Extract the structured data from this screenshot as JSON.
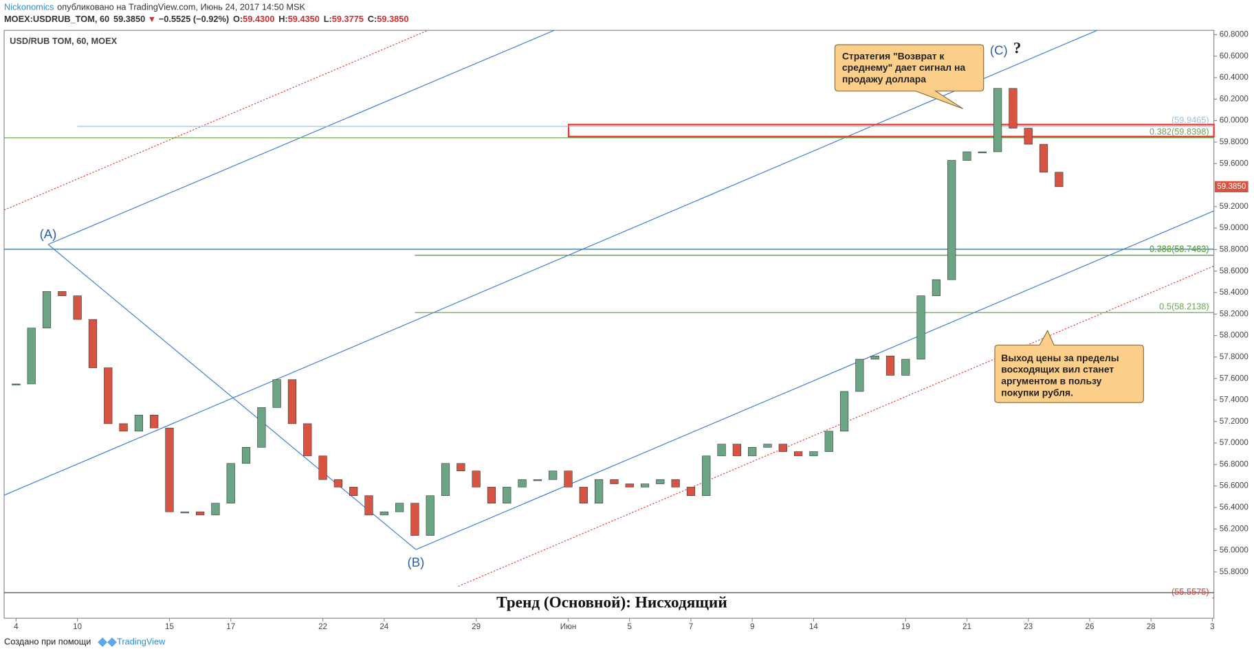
{
  "header": {
    "author": "Nickonomics",
    "published": "опубликовано на TradingView.com, Июнь 24, 2017 14:50 MSK",
    "symbol": "MOEX:USDRUB_TOM, 60",
    "last": "59.3850",
    "arrow": "▼",
    "change": "−0.5525 (−0.92%)",
    "ohlc": [
      [
        "O:",
        "59.4300"
      ],
      [
        "H:",
        "59.4350"
      ],
      [
        "L:",
        "59.3775"
      ],
      [
        "C:",
        "59.3850"
      ]
    ]
  },
  "chart_data": {
    "type": "candlestick",
    "title": "USD/RUB TOM, 60, MOEX",
    "up_color": "#6ba583",
    "down_color": "#d75442",
    "x": [
      0,
      0.5,
      1,
      1.5,
      2,
      2.5,
      3,
      3.5,
      4,
      4.5,
      5,
      5.5,
      6,
      6.5,
      7,
      7.5,
      8,
      8.5,
      9,
      9.5,
      10,
      10.5,
      11,
      11.5,
      12,
      12.5,
      13,
      13.5,
      14,
      14.5,
      15,
      15.5,
      16,
      16.5,
      17,
      17.5,
      18,
      18.5,
      19,
      19.5,
      20,
      20.5,
      21,
      21.5,
      22,
      22.5,
      23,
      23.5,
      24,
      24.5,
      25,
      25.5,
      26,
      26.5,
      27,
      27.5,
      28,
      28.5,
      29,
      29.5,
      30,
      30.5,
      31,
      31.5,
      32,
      32.5,
      33,
      33.5,
      34
    ],
    "values": [
      57.55,
      58.07,
      58.41,
      58.37,
      58.15,
      57.7,
      57.18,
      57.11,
      57.26,
      57.14,
      56.36,
      56.36,
      56.33,
      56.44,
      56.81,
      56.96,
      57.33,
      57.59,
      57.18,
      56.88,
      56.66,
      56.59,
      56.51,
      56.33,
      56.36,
      56.44,
      56.14,
      56.51,
      56.81,
      56.74,
      56.59,
      56.44,
      56.59,
      56.66,
      56.66,
      56.74,
      56.59,
      56.44,
      56.66,
      56.62,
      56.59,
      56.62,
      56.66,
      56.59,
      56.51,
      56.88,
      56.99,
      56.88,
      56.96,
      56.99,
      56.92,
      56.88,
      56.92,
      57.11,
      57.48,
      57.78,
      57.81,
      57.63,
      57.78,
      58.37,
      58.52,
      59.63,
      59.71,
      59.71,
      60.3,
      59.93,
      59.78,
      59.52,
      59.385
    ],
    "xlim": [
      -0.39,
      39.05
    ],
    "xticks": [
      {
        "value": 0,
        "label": "4"
      },
      {
        "value": 2,
        "label": "10"
      },
      {
        "value": 5,
        "label": "15"
      },
      {
        "value": 7,
        "label": "17"
      },
      {
        "value": 10,
        "label": "22"
      },
      {
        "value": 12,
        "label": "24"
      },
      {
        "value": 15,
        "label": "29"
      },
      {
        "value": 18,
        "label": "Июн"
      },
      {
        "value": 20,
        "label": "5"
      },
      {
        "value": 22,
        "label": "7"
      },
      {
        "value": 24,
        "label": "9"
      },
      {
        "value": 26,
        "label": "14"
      },
      {
        "value": 29,
        "label": "19"
      },
      {
        "value": 31,
        "label": "21"
      },
      {
        "value": 33,
        "label": "23"
      },
      {
        "value": 35,
        "label": "26"
      },
      {
        "value": 37,
        "label": "28"
      },
      {
        "value": 39,
        "label": "3"
      }
    ],
    "ylim": [
      55.6,
      60.84
    ],
    "yticks": [
      {
        "value": 55.8,
        "label": "55.8000"
      },
      {
        "value": 56.0,
        "label": "56.0000"
      },
      {
        "value": 56.2,
        "label": "56.2000"
      },
      {
        "value": 56.4,
        "label": "56.4000"
      },
      {
        "value": 56.6,
        "label": "56.6000"
      },
      {
        "value": 56.8,
        "label": "56.8000"
      },
      {
        "value": 57.0,
        "label": "57.0000"
      },
      {
        "value": 57.2,
        "label": "57.2000"
      },
      {
        "value": 57.4,
        "label": "57.4000"
      },
      {
        "value": 57.6,
        "label": "57.6000"
      },
      {
        "value": 57.8,
        "label": "57.8000"
      },
      {
        "value": 58.0,
        "label": "58.0000"
      },
      {
        "value": 58.2,
        "label": "58.2000"
      },
      {
        "value": 58.4,
        "label": "58.4000"
      },
      {
        "value": 58.6,
        "label": "58.6000"
      },
      {
        "value": 58.8,
        "label": "58.8000"
      },
      {
        "value": 59.0,
        "label": "59.0000"
      },
      {
        "value": 59.2,
        "label": "59.2000"
      },
      {
        "value": 59.6,
        "label": "59.6000"
      },
      {
        "value": 59.8,
        "label": "59.8000"
      },
      {
        "value": 60.0,
        "label": "60.0000"
      },
      {
        "value": 60.2,
        "label": "60.2000"
      },
      {
        "value": 60.4,
        "label": "60.4000"
      },
      {
        "value": 60.6,
        "label": "60.6000"
      },
      {
        "value": 60.8,
        "label": "60.8000"
      }
    ],
    "price_marker": {
      "value": 59.385,
      "label": "59.3850"
    },
    "levels": [
      {
        "value": 59.9465,
        "label": "(59.9465)",
        "color": "#9ac3e0",
        "from": 2
      },
      {
        "value": 59.8398,
        "label": "0.382(59.8398)",
        "color": "#6aa84f",
        "from": -0.39
      },
      {
        "value": 58.7483,
        "label": "0.382(58.7483)",
        "color": "#6aa84f",
        "from": 13
      },
      {
        "value": 58.7463,
        "label": "0.786(58.7463)",
        "color": "#6aa84f",
        "from": 13
      },
      {
        "value": 58.2138,
        "label": "0.5(58.2138)",
        "color": "#6aa84f",
        "from": 13
      },
      {
        "value": 55.5575,
        "label": "(55.5575)",
        "color": "#e53935",
        "from": 39
      }
    ],
    "waves": [
      "(A)",
      "(B)",
      "(C)",
      "?"
    ],
    "callouts": [
      [
        "Стратегия \"Возврат к",
        "среднему\" дает сигнал на",
        "продажу доллара"
      ],
      [
        "Выход цены за пределы",
        "восходящих вил станет",
        "аргументом в пользу",
        "покупки рубля."
      ]
    ],
    "trend": "Тренд (Основной): Нисходящий"
  },
  "footer": {
    "made": "Создано при помощи",
    "brand": "TradingView"
  }
}
